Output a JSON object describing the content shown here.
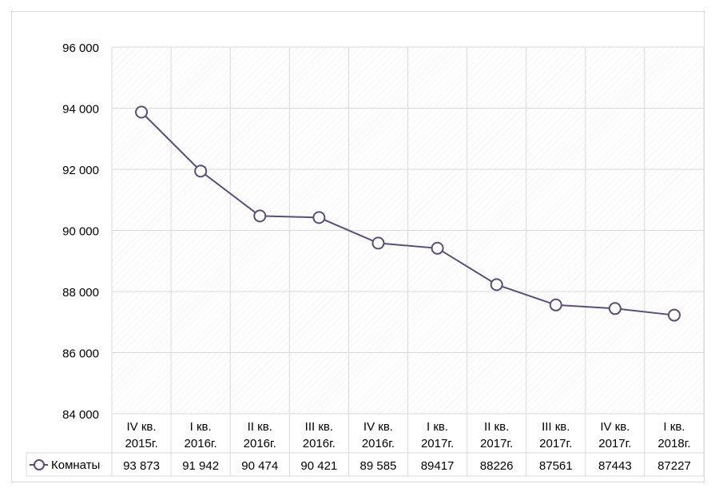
{
  "chart_data": {
    "type": "line",
    "categories": [
      [
        "IV кв.",
        "2015г."
      ],
      [
        "I кв.",
        "2016г."
      ],
      [
        "II кв.",
        "2016г."
      ],
      [
        "III кв.",
        "2016г."
      ],
      [
        "IV кв.",
        "2016г."
      ],
      [
        "I кв.",
        "2017г."
      ],
      [
        "II кв.",
        "2017г."
      ],
      [
        "III кв.",
        "2017г."
      ],
      [
        "IV кв.",
        "2017г."
      ],
      [
        "I кв.",
        "2018г."
      ]
    ],
    "series": [
      {
        "name": "Комнаты",
        "values": [
          93873,
          91942,
          90474,
          90421,
          89585,
          89417,
          88226,
          87561,
          87443,
          87227
        ],
        "value_labels": [
          "93 873",
          "91 942",
          "90 474",
          "90 421",
          "89 585",
          "89417",
          "88226",
          "87561",
          "87443",
          "87227"
        ],
        "color": "#5b4e77",
        "marker": "circle-open"
      }
    ],
    "ylim": [
      84000,
      96000
    ],
    "yticks": [
      84000,
      86000,
      88000,
      90000,
      92000,
      94000,
      96000
    ],
    "ytick_labels": [
      "84 000",
      "86 000",
      "88 000",
      "90 000",
      "92 000",
      "94 000",
      "96 000"
    ],
    "grid": true,
    "legend": "data-table-left",
    "title": "",
    "xlabel": "",
    "ylabel": ""
  },
  "colors": {
    "line": "#5b4e77",
    "grid": "#d9d9d9",
    "plot_pattern": "#ececec"
  }
}
